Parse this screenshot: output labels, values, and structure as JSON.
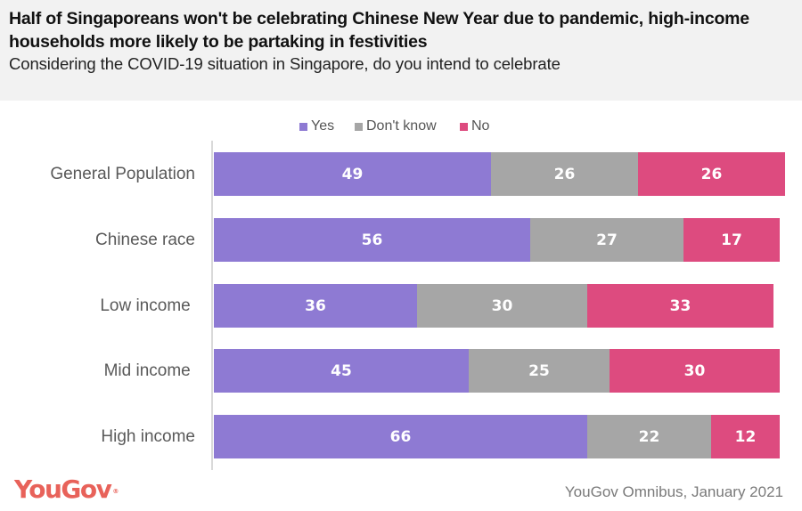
{
  "header": {
    "title": "Half of Singaporeans won't be celebrating Chinese New Year due to pandemic, high-income households more likely to be partaking in festivities",
    "subtitle": "Considering the COVID-19 situation in Singapore, do you intend to celebrate"
  },
  "footer": {
    "logo": "YouGov",
    "logo_mark": "®",
    "source": "YouGov Omnibus, January 2021"
  },
  "colors": {
    "yes": "#8e7ad3",
    "dont_know": "#a6a6a6",
    "no": "#dd4b7f",
    "header_bg": "#f2f2f2",
    "brand": "#e8625a"
  },
  "chart_data": {
    "type": "bar",
    "orientation": "horizontal",
    "stacked": true,
    "title": "Half of Singaporeans won't be celebrating Chinese New Year due to pandemic, high-income households more likely to be partaking in festivities",
    "subtitle": "Considering the COVID-19 situation in Singapore, do you intend to celebrate",
    "xlabel": "",
    "ylabel": "",
    "legend_position": "top-center",
    "grid": false,
    "xlim": [
      0,
      101
    ],
    "categories": [
      "General Population",
      "Chinese race",
      "Low income ",
      "Mid income ",
      "High income"
    ],
    "series": [
      {
        "name": "Yes",
        "key": "yes",
        "values": [
          49,
          56,
          36,
          45,
          66
        ]
      },
      {
        "name": "Don't know",
        "key": "dont_know",
        "values": [
          26,
          27,
          30,
          25,
          22
        ]
      },
      {
        "name": "No",
        "key": "no",
        "values": [
          26,
          17,
          33,
          30,
          12
        ]
      }
    ]
  }
}
